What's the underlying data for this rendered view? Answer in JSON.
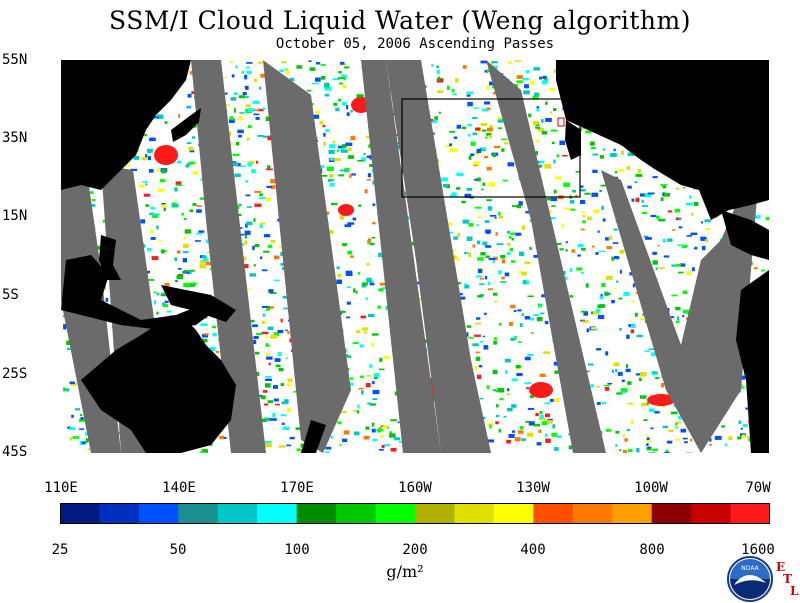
{
  "title": "SSM/I Cloud Liquid Water (Weng algorithm)",
  "subtitle": "October 05, 2006  Ascending Passes",
  "lat_labels": [
    "55N",
    "35N",
    "15N",
    "5S",
    "25S",
    "45S"
  ],
  "lon_labels": [
    "110E",
    "140E",
    "170E",
    "160W",
    "130W",
    "100W",
    "70W"
  ],
  "colorbar": {
    "tick_labels": [
      "25",
      "50",
      "100",
      "200",
      "400",
      "800",
      "1600"
    ],
    "units": "g/m²",
    "colors": [
      "#001a80",
      "#0030c0",
      "#0050ff",
      "#1a9090",
      "#00c8c8",
      "#00ffff",
      "#008c00",
      "#00c800",
      "#00ff00",
      "#b0b000",
      "#e0e000",
      "#ffff00",
      "#ff5000",
      "#ff7800",
      "#ffa000",
      "#8c0000",
      "#c80000",
      "#ff1a1a"
    ]
  },
  "logo": {
    "name": "NOAA",
    "etl_letters": [
      "E",
      "T",
      "L"
    ]
  },
  "colors": {
    "land": "#000000",
    "gap": "#6b6b6b",
    "ocean": "#ffffff",
    "box": "#000000"
  }
}
